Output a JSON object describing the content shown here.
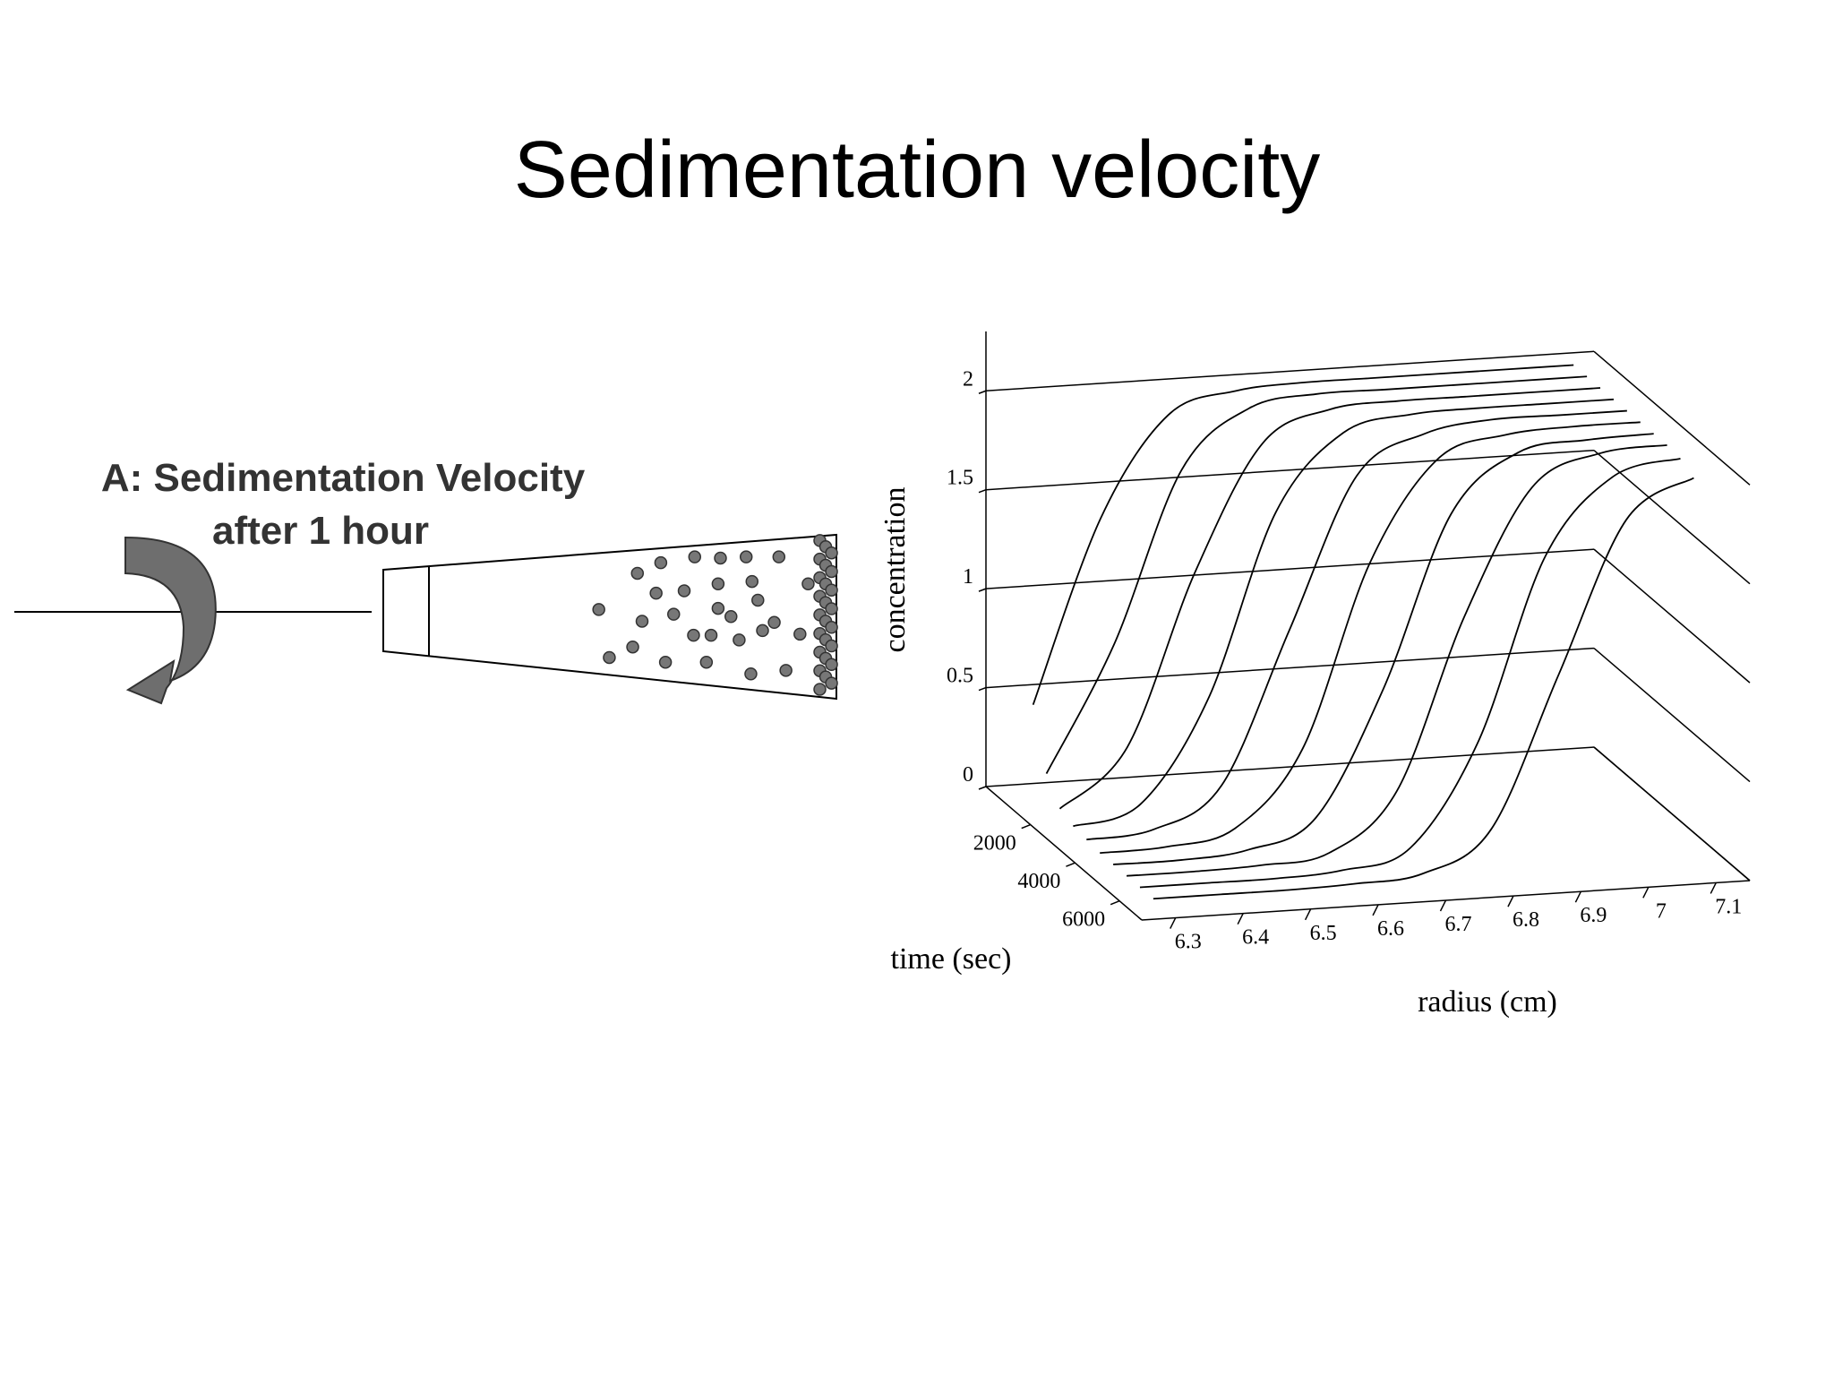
{
  "title": "Sedimentation velocity",
  "diagram": {
    "label": [
      "A: Sedimentation Velocity",
      "after 1 hour"
    ]
  },
  "chart_data": {
    "type": "waterfall3d",
    "xlabel": "radius (cm)",
    "ylabel": "time (sec)",
    "zlabel": "concentration",
    "x": [
      6.3,
      6.4,
      6.5,
      6.6,
      6.7,
      6.8,
      6.9,
      7,
      7.1
    ],
    "xlim": [
      6.25,
      7.15
    ],
    "xticks": [
      6.3,
      6.4,
      6.5,
      6.6,
      6.7,
      6.8,
      6.9,
      7,
      7.1
    ],
    "ylim": [
      0,
      7000
    ],
    "yticks": [
      2000,
      4000,
      6000
    ],
    "zlim": [
      0,
      2.3
    ],
    "zticks": [
      0,
      0.5,
      1,
      1.5,
      2
    ],
    "grid": true,
    "color": "#000000",
    "series": [
      {
        "time": 600,
        "values": [
          0.46,
          1.38,
          1.88,
          1.98,
          2,
          2,
          2,
          2,
          2
        ]
      },
      {
        "time": 1200,
        "values": [
          0.17,
          0.8,
          1.66,
          1.95,
          2,
          2,
          2,
          2,
          2
        ]
      },
      {
        "time": 1800,
        "values": [
          0.05,
          0.34,
          1.2,
          1.83,
          1.98,
          2,
          2,
          2,
          2
        ]
      },
      {
        "time": 2400,
        "values": [
          0.02,
          0.11,
          0.62,
          1.54,
          1.92,
          1.99,
          2,
          2,
          2
        ]
      },
      {
        "time": 3000,
        "values": [
          0.01,
          0.04,
          0.24,
          1,
          1.76,
          1.95,
          2,
          2,
          2
        ]
      },
      {
        "time": 3600,
        "values": [
          0,
          0.01,
          0.08,
          0.46,
          1.38,
          1.88,
          1.98,
          2,
          2
        ]
      },
      {
        "time": 4200,
        "values": [
          0,
          0,
          0.03,
          0.17,
          0.8,
          1.66,
          1.95,
          1.99,
          2
        ]
      },
      {
        "time": 4800,
        "values": [
          0,
          0,
          0.01,
          0.05,
          0.34,
          1.2,
          1.83,
          1.98,
          2
        ]
      },
      {
        "time": 5400,
        "values": [
          0,
          0,
          0,
          0.02,
          0.11,
          0.62,
          1.54,
          1.92,
          1.99
        ]
      },
      {
        "time": 6000,
        "values": [
          0,
          0,
          0,
          0.01,
          0.04,
          0.24,
          1,
          1.76,
          1.95
        ]
      }
    ]
  }
}
